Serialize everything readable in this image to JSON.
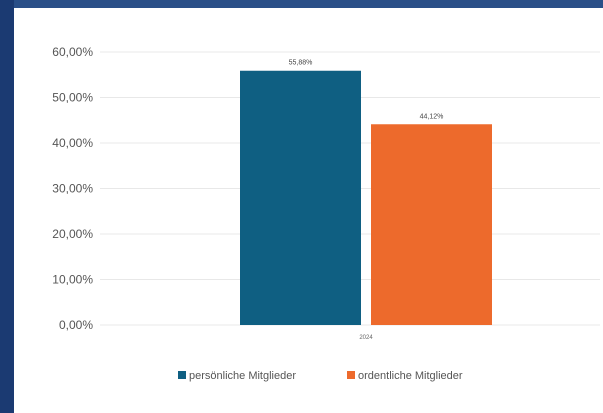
{
  "chart_data": {
    "type": "bar",
    "categories": [
      "2024"
    ],
    "series": [
      {
        "name": "persönliche Mitglieder",
        "values": [
          55.88
        ],
        "label": "55,88%",
        "color": "#0f5f82"
      },
      {
        "name": "ordentliche Mitglieder",
        "values": [
          44.12
        ],
        "label": "44,12%",
        "color": "#ed6a2c"
      }
    ],
    "yticks": [
      "0,00%",
      "10,00%",
      "20,00%",
      "30,00%",
      "40,00%",
      "50,00%",
      "60,00%"
    ],
    "ylim": [
      0,
      60
    ],
    "grid": true,
    "legend_position": "bottom",
    "title": "",
    "xlabel": "",
    "ylabel": ""
  },
  "colors": {
    "background": "#1f3f78",
    "panel": "#ffffff",
    "gridline": "#e8e8e8"
  }
}
